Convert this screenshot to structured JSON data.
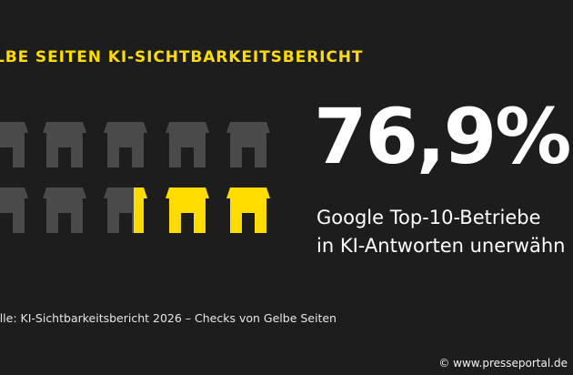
{
  "headline": "LBE SEITEN KI-SICHTBARKEITSBERICHT",
  "statistic": {
    "value": "76,9%",
    "caption_line1": "Google Top-10-Betriebe",
    "caption_line2": "in KI-Antworten unerwähn"
  },
  "pictogram": {
    "icon": "storefront-icon",
    "rows": 2,
    "columns": 5,
    "highlighted_fraction_of_grid": 0.25,
    "colors": {
      "inactive": "#4a4a4a",
      "highlight": "#ffdc00"
    }
  },
  "source": "elle: KI-Sichtbarkeitsbericht 2026 – Checks von Gelbe Seiten",
  "credit": "© www.presseportal.de",
  "colors": {
    "background": "#1d1d1d",
    "accent": "#ffdc00",
    "text": "#ffffff"
  }
}
